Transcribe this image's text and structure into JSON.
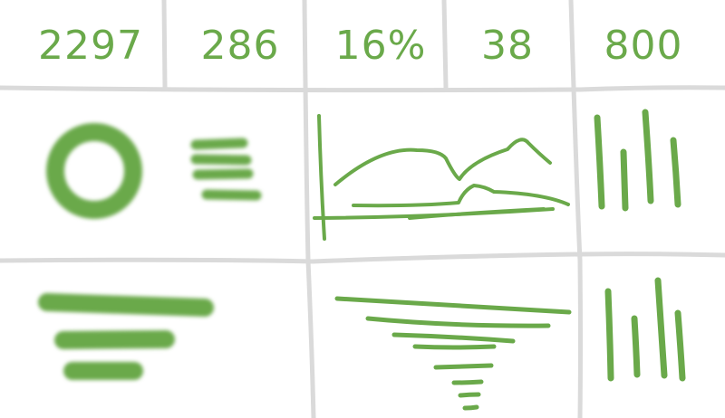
{
  "theme": {
    "ink": "#6aa94a",
    "ink_dark": "#5e9e3f",
    "grid": "#dadada",
    "background": "#ffffff"
  },
  "kpis": [
    {
      "value": "2297"
    },
    {
      "value": "286"
    },
    {
      "value": "16%"
    },
    {
      "value": "38"
    },
    {
      "value": "800"
    }
  ],
  "widgets": {
    "donut": {
      "icon": "donut-chart-sketch-icon"
    },
    "lines_list": {
      "icon": "stacked-lines-sketch-icon"
    },
    "line_chart": {
      "icon": "line-chart-sketch-icon"
    },
    "bar_chart_top": {
      "icon": "vertical-bars-sketch-icon"
    },
    "horizontal_bars": {
      "icon": "horizontal-bars-sketch-icon"
    },
    "funnel": {
      "icon": "funnel-sketch-icon"
    },
    "bar_chart_bottom": {
      "icon": "vertical-bars-sketch-icon"
    }
  }
}
